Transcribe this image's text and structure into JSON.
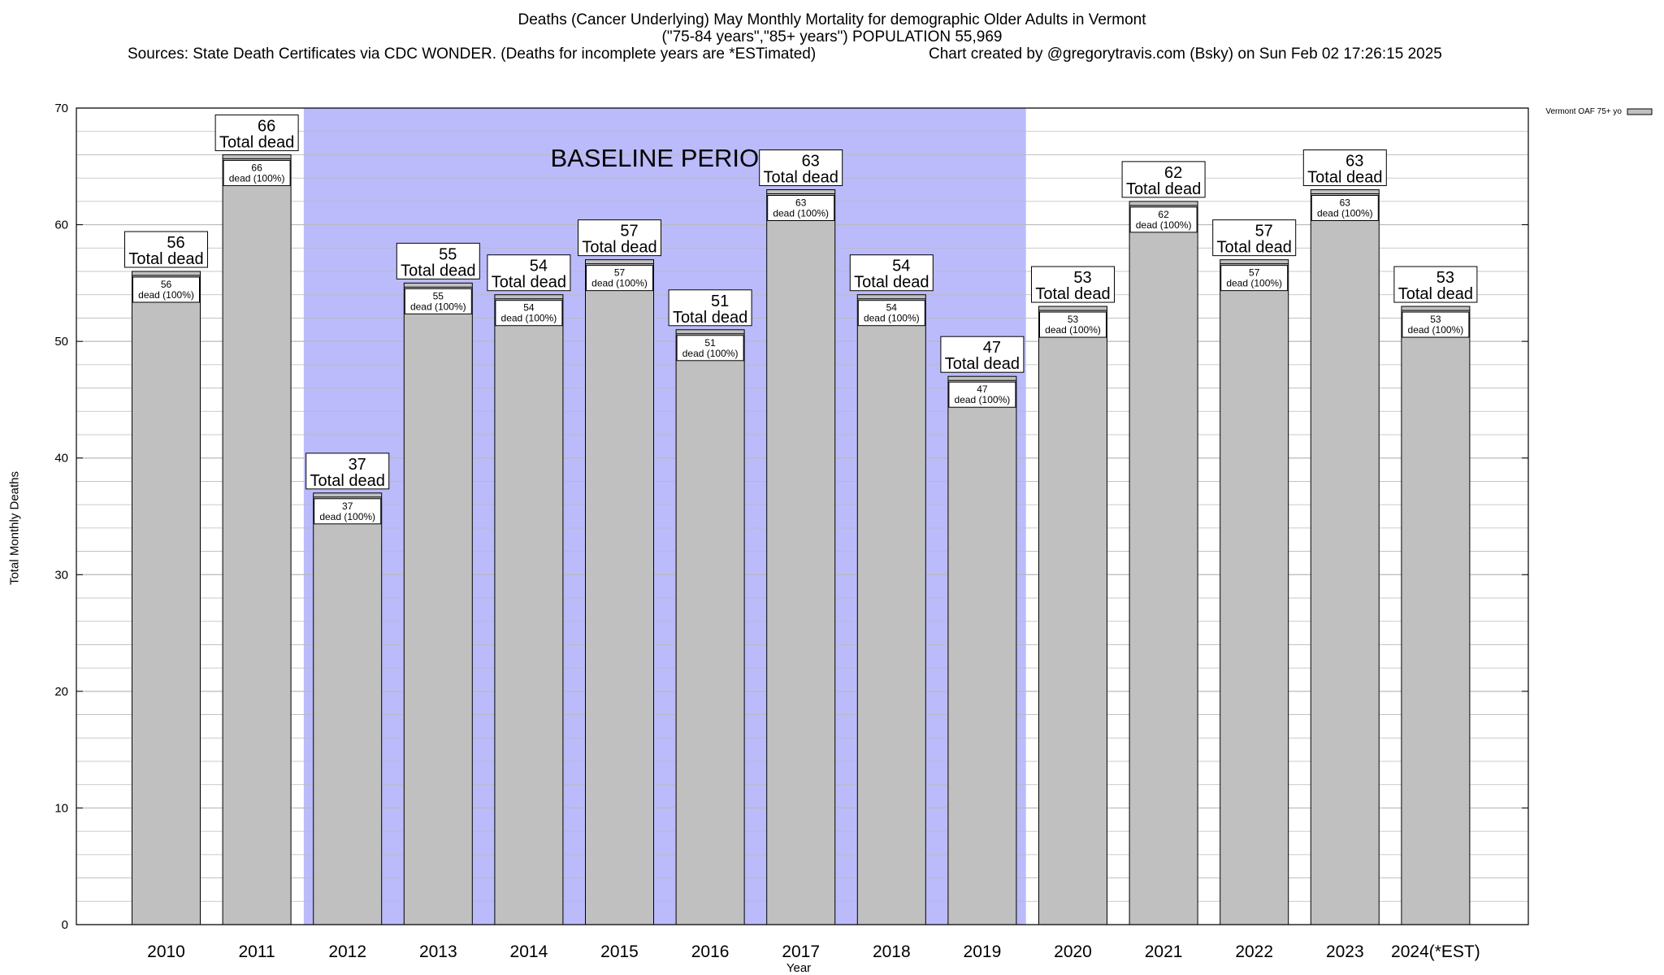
{
  "title": {
    "line1": "Deaths (Cancer Underlying) May Monthly Mortality for demographic Older Adults in Vermont",
    "line2": "(\"75-84 years\",\"85+ years\") POPULATION 55,969",
    "sources": "Sources: State Death Certificates via CDC WONDER. (Deaths for incomplete years are *ESTimated)",
    "credit": "Chart created by @gregorytravis.com (Bsky) on Sun Feb 02 17:26:15 2025"
  },
  "chart_data": {
    "type": "bar",
    "xlabel": "Year",
    "ylabel": "Total Monthly Deaths",
    "ylim": [
      0,
      70
    ],
    "yticks": [
      0,
      10,
      20,
      30,
      40,
      50,
      60,
      70
    ],
    "grid": true,
    "legend": {
      "position": "top-right",
      "label": "Vermont OAF 75+ yo"
    },
    "categories": [
      "2010",
      "2011",
      "2012",
      "2013",
      "2014",
      "2015",
      "2016",
      "2017",
      "2018",
      "2019",
      "2020",
      "2021",
      "2022",
      "2023",
      "2024(*EST)"
    ],
    "series": [
      {
        "name": "Vermont OAF 75+ yo",
        "values": [
          56,
          66,
          37,
          55,
          54,
          57,
          51,
          63,
          54,
          47,
          53,
          62,
          57,
          63,
          53
        ]
      }
    ],
    "baseline_period": {
      "label": "BASELINE PERIOD",
      "from": "2012",
      "to": "2019"
    },
    "bar_label_outer": "Total dead",
    "bar_label_inner": "dead (100%)"
  },
  "colors": {
    "bar_fill": "#c0c0c0",
    "baseline_fill": "#bbbbfb",
    "grid": "#b9b9b9"
  }
}
